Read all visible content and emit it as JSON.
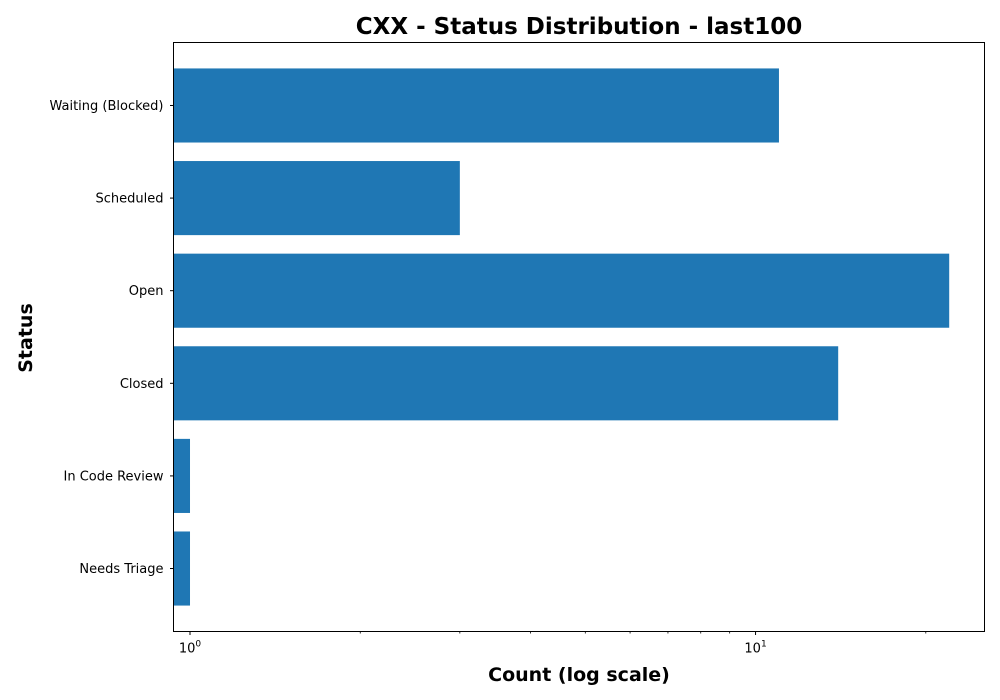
{
  "chart_data": {
    "type": "bar",
    "orientation": "horizontal",
    "title": "CXX - Status Distribution - last100",
    "xlabel": "Count (log scale)",
    "ylabel": "Status",
    "x_scale": "log",
    "xlim": [
      0.935,
      25.4
    ],
    "x_major_ticks": [
      {
        "value": 1,
        "base": "10",
        "exponent": "0"
      },
      {
        "value": 10,
        "base": "10",
        "exponent": "1"
      }
    ],
    "x_minor_ticks": [
      2,
      3,
      4,
      5,
      6,
      7,
      8,
      9,
      20
    ],
    "categories": [
      "Needs Triage",
      "In Code Review",
      "Closed",
      "Open",
      "Scheduled",
      "Waiting (Blocked)"
    ],
    "values": [
      1,
      1,
      14,
      22,
      3,
      11
    ],
    "bar_color": "#1f77b4",
    "grid": false,
    "legend": "none"
  }
}
